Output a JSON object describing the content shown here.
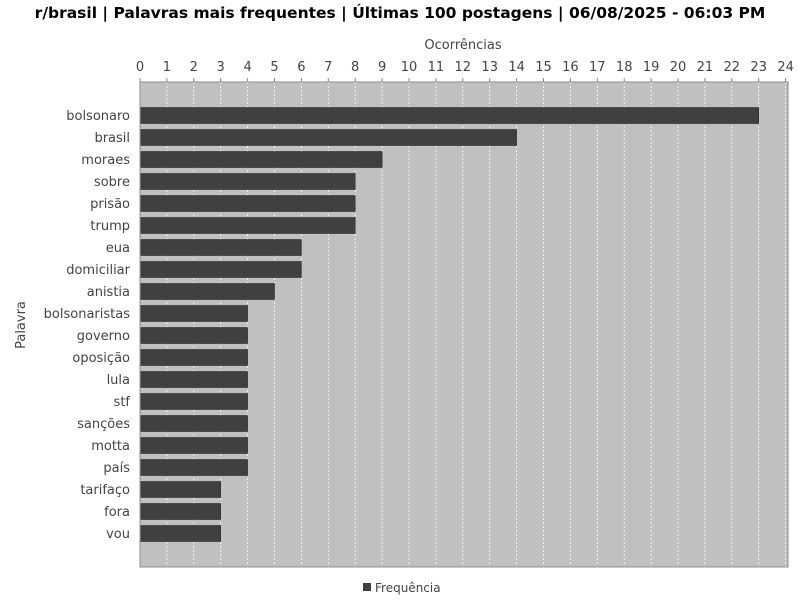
{
  "chart_data": {
    "type": "bar",
    "orientation": "horizontal",
    "title": "r/brasil | Palavras mais frequentes | Últimas 100 postagens | 06/08/2025 - 06:03 PM",
    "xlabel": "Ocorrências",
    "ylabel": "Palavra",
    "x_axis_position": "top",
    "xlim": [
      0,
      24
    ],
    "xticks": [
      "0",
      "1",
      "2",
      "3",
      "4",
      "5",
      "6",
      "7",
      "8",
      "9",
      "10",
      "11",
      "12",
      "13",
      "14",
      "15",
      "16",
      "17",
      "18",
      "19",
      "20",
      "21",
      "22",
      "23",
      "24"
    ],
    "grid": "vertical dashed",
    "legend_position": "bottom-center",
    "colors": {
      "bar": "#404040",
      "plot_background": "#c0c0c0",
      "grid": "#ffffff",
      "plot_border": "#8c8c8c"
    },
    "categories": [
      "bolsonaro",
      "brasil",
      "moraes",
      "sobre",
      "prisão",
      "trump",
      "eua",
      "domiciliar",
      "anistia",
      "bolsonaristas",
      "governo",
      "oposição",
      "lula",
      "stf",
      "sanções",
      "motta",
      "país",
      "tarifaço",
      "fora",
      "vou"
    ],
    "series": [
      {
        "name": "Frequência",
        "values": [
          23,
          14,
          9,
          8,
          8,
          8,
          6,
          6,
          5,
          4,
          4,
          4,
          4,
          4,
          4,
          4,
          4,
          3,
          3,
          3
        ]
      }
    ]
  }
}
